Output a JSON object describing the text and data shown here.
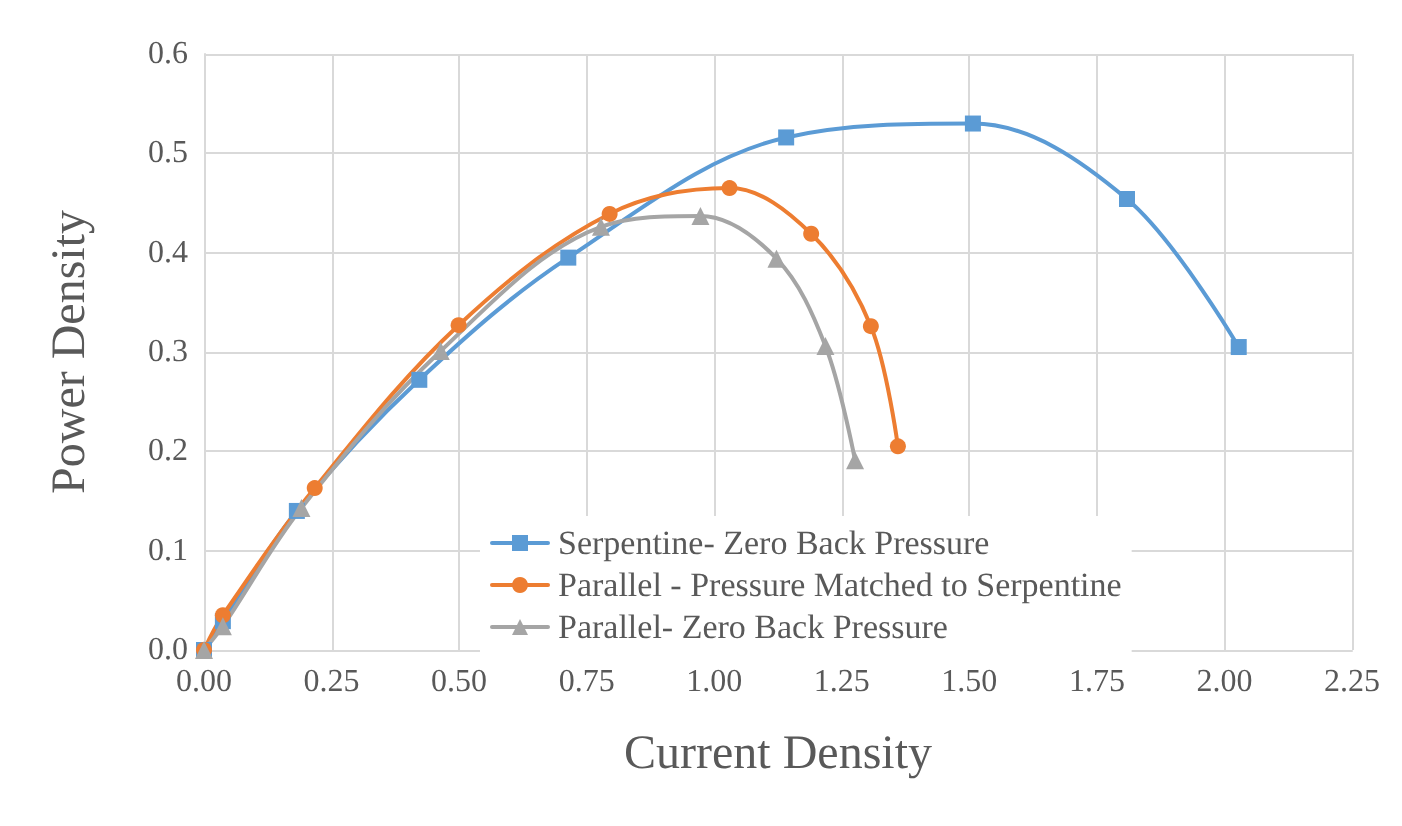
{
  "chart_data": {
    "type": "line",
    "xlabel": "Current Density",
    "ylabel": "Power Density",
    "xlim": [
      0,
      2.25
    ],
    "xticks": [
      {
        "value": 0,
        "label": "0.00"
      },
      {
        "value": 0.25,
        "label": "0.25"
      },
      {
        "value": 0.5,
        "label": "0.50"
      },
      {
        "value": 0.75,
        "label": "0.75"
      },
      {
        "value": 1,
        "label": "1.00"
      },
      {
        "value": 1.25,
        "label": "1.25"
      },
      {
        "value": 1.5,
        "label": "1.50"
      },
      {
        "value": 1.75,
        "label": "1.75"
      },
      {
        "value": 2,
        "label": "2.00"
      },
      {
        "value": 2.25,
        "label": "2.25"
      }
    ],
    "ylim": [
      0,
      0.6
    ],
    "yticks": [
      {
        "value": 0,
        "label": "0.0"
      },
      {
        "value": 0.1,
        "label": "0.1"
      },
      {
        "value": 0.2,
        "label": "0.2"
      },
      {
        "value": 0.3,
        "label": "0.3"
      },
      {
        "value": 0.4,
        "label": "0.4"
      },
      {
        "value": 0.5,
        "label": "0.5"
      },
      {
        "value": 0.6,
        "label": "0.6"
      }
    ],
    "grid": true,
    "legend": "bottom",
    "line_style": "solid",
    "series": [
      {
        "name": "Serpentine- Zero Back Pressure",
        "color": "#5b9bd5",
        "marker": "square",
        "x": [
          0,
          0.037,
          0.182,
          0.422,
          0.714,
          1.141,
          1.507,
          1.809,
          2.028
        ],
        "values": [
          0,
          0.029,
          0.14,
          0.272,
          0.395,
          0.516,
          0.53,
          0.454,
          0.305
        ]
      },
      {
        "name": "Parallel - Pressure Matched to Serpentine",
        "color": "#ed7d31",
        "marker": "circle",
        "x": [
          0,
          0.037,
          0.217,
          0.499,
          0.795,
          1.03,
          1.19,
          1.307,
          1.36
        ],
        "values": [
          0,
          0.035,
          0.163,
          0.327,
          0.439,
          0.465,
          0.419,
          0.326,
          0.205
        ]
      },
      {
        "name": "Parallel- Zero Back Pressure",
        "color": "#a5a5a5",
        "marker": "triangle",
        "x": [
          0,
          0.037,
          0.191,
          0.464,
          0.778,
          0.973,
          1.122,
          1.218,
          1.276
        ],
        "values": [
          0,
          0.024,
          0.143,
          0.301,
          0.426,
          0.437,
          0.394,
          0.306,
          0.191
        ]
      }
    ]
  }
}
